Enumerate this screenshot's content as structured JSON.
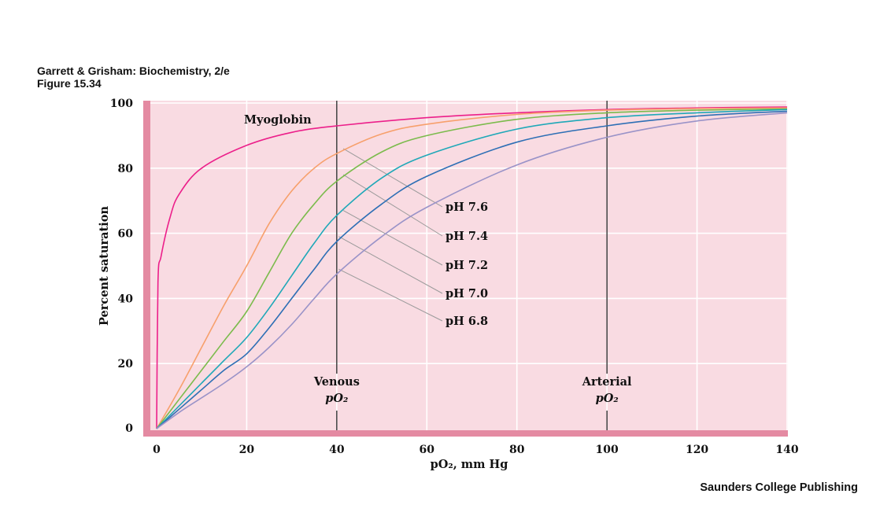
{
  "header": {
    "line1": "Garrett & Grisham: Biochemistry, 2/e",
    "line2": "Figure 15.34"
  },
  "footer": {
    "publisher": "Saunders College Publishing"
  },
  "chart_data": {
    "type": "line",
    "title": "",
    "xlabel": "pO₂, mm Hg",
    "ylabel": "Percent saturation",
    "xlim": [
      0,
      140
    ],
    "ylim": [
      0,
      100
    ],
    "xticks": [
      "0",
      "20",
      "40",
      "60",
      "80",
      "100",
      "120",
      "140"
    ],
    "yticks": [
      "0",
      "20",
      "40",
      "60",
      "80",
      "100"
    ],
    "grid": true,
    "colors": {
      "background": "#f9dbe2",
      "frame": "#e48aa2",
      "grid": "#ffffff",
      "myoglobin": "#ec1f8a",
      "pH 7.6": "#f7a06c",
      "pH 7.4": "#7bbb4c",
      "pH 7.2": "#1fa8b8",
      "pH 7.0": "#2e6fb5",
      "pH 6.8": "#9a93c8"
    },
    "series": [
      {
        "name": "Myoglobin",
        "x": [
          0,
          0.3,
          1,
          3,
          5,
          10,
          20,
          30,
          40,
          60,
          80,
          100,
          120,
          140
        ],
        "y": [
          0,
          45,
          53,
          65,
          72,
          80,
          87,
          91,
          93,
          95.5,
          97,
          98,
          98.5,
          98.8
        ]
      },
      {
        "name": "pH 7.6",
        "x": [
          0,
          5,
          10,
          15,
          20,
          25,
          30,
          35,
          40,
          50,
          60,
          80,
          100,
          120,
          140
        ],
        "y": [
          0,
          12,
          25,
          38,
          50,
          63,
          73,
          80,
          84.5,
          90.5,
          93.5,
          96.5,
          97.8,
          98.3,
          98.5
        ]
      },
      {
        "name": "pH 7.4",
        "x": [
          0,
          5,
          10,
          15,
          20,
          25,
          30,
          35,
          40,
          50,
          60,
          80,
          100,
          120,
          140
        ],
        "y": [
          0,
          9,
          18,
          27,
          36,
          48,
          60,
          69,
          76,
          85,
          90,
          95,
          97,
          97.8,
          98.2
        ]
      },
      {
        "name": "pH 7.2",
        "x": [
          0,
          5,
          10,
          15,
          20,
          25,
          30,
          35,
          40,
          50,
          60,
          80,
          100,
          120,
          140
        ],
        "y": [
          0,
          7,
          14,
          21,
          28,
          37,
          47,
          57,
          65.5,
          77,
          84,
          92,
          95.5,
          97,
          98
        ]
      },
      {
        "name": "pH 7.0",
        "x": [
          0,
          5,
          10,
          15,
          20,
          25,
          30,
          35,
          40,
          50,
          60,
          80,
          100,
          120,
          140
        ],
        "y": [
          0,
          6,
          12,
          18,
          23,
          31,
          40,
          49,
          57.5,
          69,
          77.5,
          88,
          93,
          96,
          97.5
        ]
      },
      {
        "name": "pH 6.8",
        "x": [
          0,
          5,
          10,
          15,
          20,
          25,
          30,
          35,
          40,
          50,
          60,
          80,
          100,
          120,
          140
        ],
        "y": [
          0,
          5,
          9.5,
          14,
          19,
          25,
          32,
          40,
          47.5,
          59,
          68,
          81,
          89.5,
          94.5,
          97
        ]
      }
    ],
    "annotations": [
      {
        "text": "Myoglobin"
      },
      {
        "text": "pH 7.6",
        "x_at": 39,
        "y_at": 86
      },
      {
        "text": "pH 7.4",
        "x_at": 39,
        "y_at": 78
      },
      {
        "text": "pH 7.2",
        "x_at": 39,
        "y_at": 67
      },
      {
        "text": "pH 7.0",
        "x_at": 38,
        "y_at": 59
      },
      {
        "text": "pH 6.8",
        "x_at": 38,
        "y_at": 49
      }
    ],
    "vlines": [
      {
        "x": 40,
        "label_top": "Venous",
        "label_bottom": "pO₂"
      },
      {
        "x": 100,
        "label_top": "Arterial",
        "label_bottom": "pO₂"
      }
    ]
  }
}
